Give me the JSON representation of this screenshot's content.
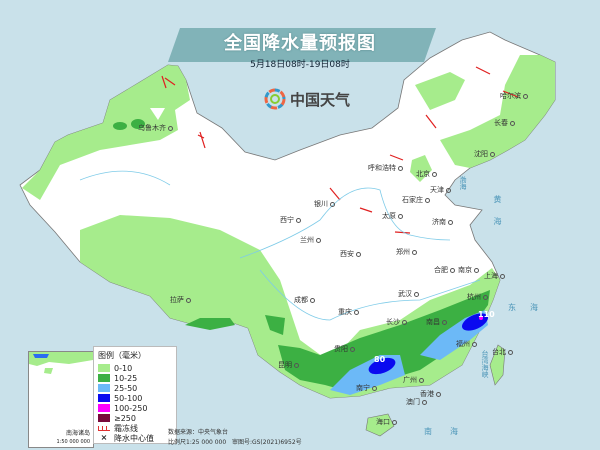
{
  "header": {
    "title": "全国降水量预报图",
    "subtitle": "5月18日08时-19日08时"
  },
  "logo": {
    "text": "中国天气"
  },
  "legend": {
    "title": "图例（毫米）",
    "items": [
      {
        "label": "0-10",
        "color": "#a6ec8c"
      },
      {
        "label": "10-25",
        "color": "#3cb043"
      },
      {
        "label": "25-50",
        "color": "#6cb9f7"
      },
      {
        "label": "50-100",
        "color": "#0a0af0"
      },
      {
        "label": "100-250",
        "color": "#ff00ff"
      },
      {
        "label": "≥250",
        "color": "#7a0a3c"
      }
    ],
    "frost_line": "霜冻线",
    "center_value": "降水中心值"
  },
  "source": {
    "data_source": "数据来源：中央气象台",
    "scale": "比例尺1:25 000 000",
    "approval": "审图号:GS(2021)6952号"
  },
  "inset": {
    "label": "南海诸岛",
    "scale": "1:50 000 000"
  },
  "cities": [
    "乌鲁木齐",
    "拉萨",
    "西宁",
    "兰州",
    "银川",
    "呼和浩特",
    "北京",
    "天津",
    "石家庄",
    "太原",
    "济南",
    "郑州",
    "西安",
    "成都",
    "重庆",
    "贵阳",
    "昆明",
    "南宁",
    "广州",
    "香港",
    "澳门",
    "海口",
    "长沙",
    "武汉",
    "南昌",
    "合肥",
    "南京",
    "上海",
    "杭州",
    "福州",
    "台北",
    "沈阳",
    "长春",
    "哈尔滨"
  ],
  "seas": [
    "渤海",
    "黄海",
    "东海",
    "南海",
    "台湾海峡"
  ],
  "precip_centers": [
    "80",
    "110"
  ]
}
